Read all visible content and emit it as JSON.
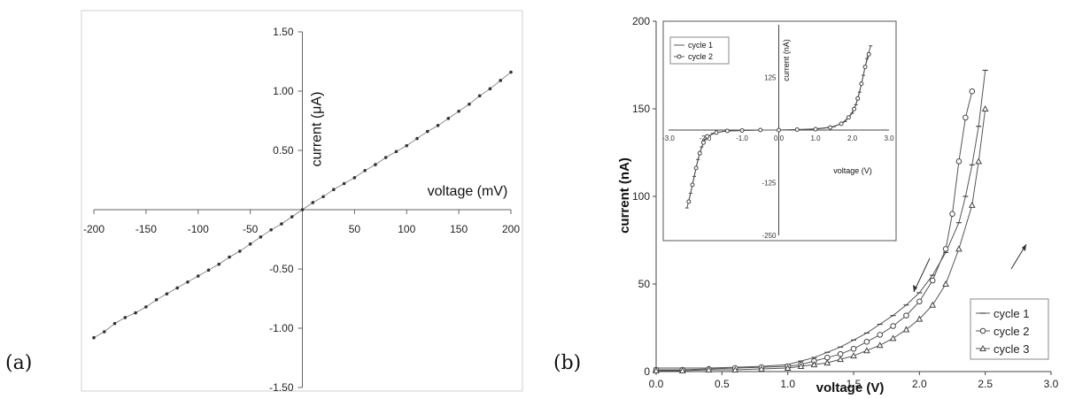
{
  "panel_labels": {
    "a": "(a)",
    "b": "(b)"
  },
  "chart_data": [
    {
      "type": "line",
      "xlabel": "voltage (mV)",
      "ylabel": "current (μA)",
      "xlim": [
        -200,
        200
      ],
      "ylim": [
        -1.5,
        1.5
      ],
      "xticks": [
        "-200",
        "-150",
        "-100",
        "-50",
        "0",
        "50",
        "100",
        "150",
        "200"
      ],
      "yticks": [
        "1.50",
        "1.00",
        "0.50",
        "-0.50",
        "-1.00",
        "-1.50"
      ],
      "grid": false,
      "series": [
        {
          "x": [
            -200,
            -190,
            -180,
            -170,
            -160,
            -150,
            -140,
            -130,
            -120,
            -110,
            -100,
            -90,
            -80,
            -70,
            -60,
            -50,
            -40,
            -30,
            -20,
            -10,
            0,
            10,
            20,
            30,
            40,
            50,
            60,
            70,
            80,
            90,
            100,
            110,
            120,
            130,
            140,
            150,
            160,
            170,
            180,
            190,
            200
          ],
          "y": [
            -1.08,
            -1.03,
            -0.96,
            -0.91,
            -0.87,
            -0.82,
            -0.76,
            -0.71,
            -0.66,
            -0.61,
            -0.56,
            -0.51,
            -0.46,
            -0.4,
            -0.35,
            -0.29,
            -0.23,
            -0.17,
            -0.12,
            -0.06,
            0.0,
            0.06,
            0.11,
            0.17,
            0.22,
            0.27,
            0.33,
            0.38,
            0.44,
            0.49,
            0.54,
            0.6,
            0.66,
            0.71,
            0.77,
            0.83,
            0.89,
            0.96,
            1.02,
            1.09,
            1.16
          ]
        }
      ]
    },
    {
      "type": "line",
      "xlabel": "voltage (V)",
      "ylabel": "current (nA)",
      "xlim": [
        0,
        3.0
      ],
      "ylim": [
        0,
        200
      ],
      "xticks": [
        "0.0",
        "0.5",
        "1.0",
        "1.5",
        "2.0",
        "2.5",
        "3.0"
      ],
      "yticks": [
        "0",
        "50",
        "100",
        "150",
        "200"
      ],
      "legend_position": "bottom-right",
      "series": [
        {
          "name": "cycle 1",
          "x": [
            0.0,
            0.2,
            0.4,
            0.6,
            0.8,
            1.0,
            1.1,
            1.2,
            1.3,
            1.4,
            1.5,
            1.6,
            1.7,
            1.8,
            1.9,
            2.0,
            2.1,
            2.2,
            2.3,
            2.35,
            2.4,
            2.45,
            2.5
          ],
          "y": [
            2,
            2,
            2,
            2.5,
            3,
            4,
            6,
            8,
            11,
            14,
            18,
            22,
            27,
            32,
            38,
            45,
            55,
            68,
            85,
            100,
            118,
            140,
            172
          ]
        },
        {
          "name": "cycle 2",
          "x": [
            0.0,
            0.2,
            0.4,
            0.6,
            0.8,
            1.0,
            1.1,
            1.2,
            1.3,
            1.4,
            1.5,
            1.6,
            1.7,
            1.8,
            1.9,
            2.0,
            2.1,
            2.2,
            2.25,
            2.3,
            2.35,
            2.4
          ],
          "y": [
            1,
            1,
            1.5,
            2,
            2.5,
            3,
            4,
            6,
            8,
            10,
            13,
            17,
            21,
            26,
            32,
            40,
            52,
            70,
            90,
            120,
            145,
            160
          ]
        },
        {
          "name": "cycle 3",
          "x": [
            0.0,
            0.2,
            0.4,
            0.6,
            0.8,
            1.0,
            1.1,
            1.2,
            1.3,
            1.4,
            1.5,
            1.6,
            1.7,
            1.8,
            1.9,
            2.0,
            2.1,
            2.2,
            2.3,
            2.4,
            2.45,
            2.5
          ],
          "y": [
            0.5,
            0.5,
            1,
            1,
            1.5,
            2,
            3,
            4,
            5,
            7,
            9,
            12,
            15,
            19,
            24,
            30,
            38,
            50,
            70,
            95,
            120,
            150
          ]
        }
      ]
    },
    {
      "type": "line",
      "xlabel": "voltage (V)",
      "ylabel": "current (nA)",
      "xlim": [
        -3.0,
        3.0
      ],
      "ylim": [
        -250,
        250
      ],
      "xticks": [
        "-3.0",
        "-2.0",
        "-1.0",
        "0.0",
        "1.0",
        "2.0",
        "3.0"
      ],
      "yticks": [
        "125",
        "-125",
        "-250"
      ],
      "legend_position": "top-left",
      "series": [
        {
          "name": "cycle 1",
          "x": [
            -2.5,
            -2.4,
            -2.3,
            -2.2,
            -2.1,
            -2.0,
            -1.8,
            -1.5,
            -1.0,
            -0.5,
            0.0,
            0.5,
            1.0,
            1.5,
            1.8,
            2.0,
            2.1,
            2.2,
            2.3,
            2.4,
            2.5
          ],
          "y": [
            -185,
            -150,
            -110,
            -70,
            -40,
            -22,
            -8,
            -3,
            -1,
            0,
            0,
            1,
            3,
            8,
            20,
            40,
            60,
            90,
            130,
            170,
            200
          ]
        },
        {
          "name": "cycle 2",
          "x": [
            -2.45,
            -2.35,
            -2.25,
            -2.15,
            -2.05,
            -1.95,
            -1.7,
            -1.4,
            -1.0,
            -0.5,
            0.0,
            0.5,
            1.0,
            1.4,
            1.7,
            1.9,
            2.05,
            2.15,
            2.25,
            2.35,
            2.45
          ],
          "y": [
            -170,
            -130,
            -90,
            -55,
            -30,
            -15,
            -6,
            -2,
            -1,
            0,
            0,
            1,
            2,
            6,
            15,
            30,
            50,
            75,
            110,
            150,
            180
          ]
        }
      ]
    }
  ]
}
